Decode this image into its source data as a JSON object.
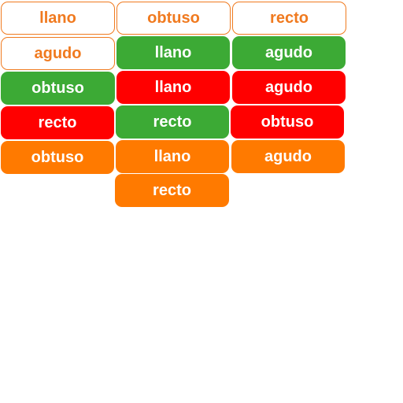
{
  "colors": {
    "outline_orange": "#f07a1f",
    "green": "#3caa35",
    "red": "#ff0000",
    "orange": "#ff7a00"
  },
  "tiles": [
    {
      "label": "llano"
    },
    {
      "label": "obtuso"
    },
    {
      "label": "recto"
    },
    {
      "label": "agudo"
    },
    {
      "label": "llano"
    },
    {
      "label": "agudo"
    },
    {
      "label": "obtuso"
    },
    {
      "label": "llano"
    },
    {
      "label": "agudo"
    },
    {
      "label": "recto"
    },
    {
      "label": "recto"
    },
    {
      "label": "obtuso"
    },
    {
      "label": "obtuso"
    },
    {
      "label": "llano"
    },
    {
      "label": "agudo"
    },
    {
      "label": "recto"
    }
  ]
}
